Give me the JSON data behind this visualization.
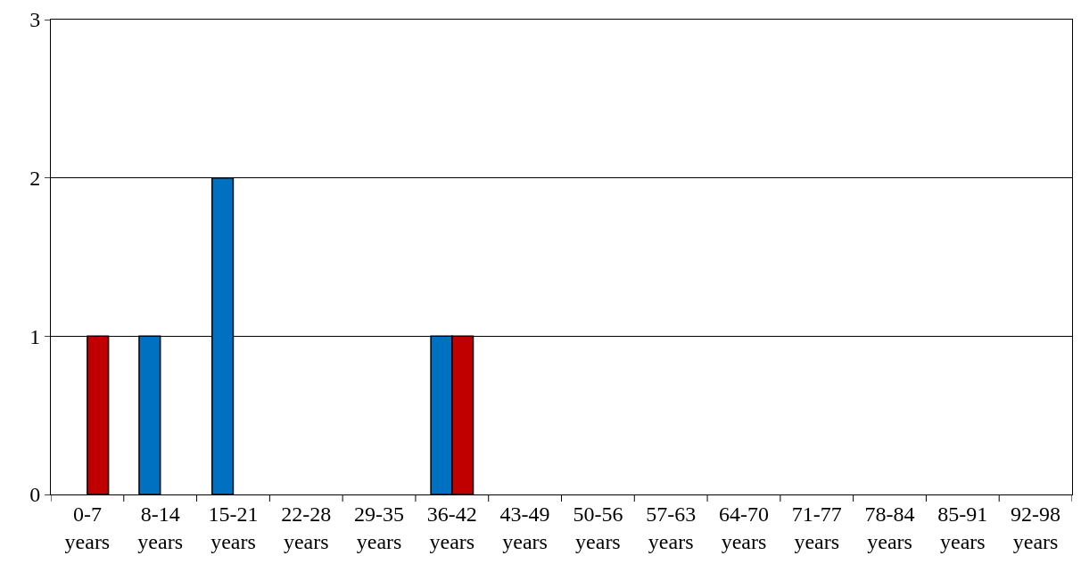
{
  "chart_data": {
    "type": "bar",
    "categories": [
      "0-7 years",
      "8-14 years",
      "15-21 years",
      "22-28 years",
      "29-35 years",
      "36-42 years",
      "43-49 years",
      "50-56 years",
      "57-63 years",
      "64-70 years",
      "71-77 years",
      "78-84 years",
      "85-91 years",
      "92-98 years"
    ],
    "series": [
      {
        "color": "#0070c0",
        "values": [
          0,
          1,
          2,
          0,
          0,
          1,
          0,
          0,
          0,
          0,
          0,
          0,
          0,
          0
        ]
      },
      {
        "color": "#c00000",
        "values": [
          1,
          0,
          0,
          0,
          0,
          1,
          0,
          0,
          0,
          0,
          0,
          0,
          0,
          0
        ]
      }
    ],
    "ylim": [
      0,
      3
    ],
    "yticks": [
      0,
      1,
      2,
      3
    ],
    "grid": "y",
    "legend": false
  }
}
